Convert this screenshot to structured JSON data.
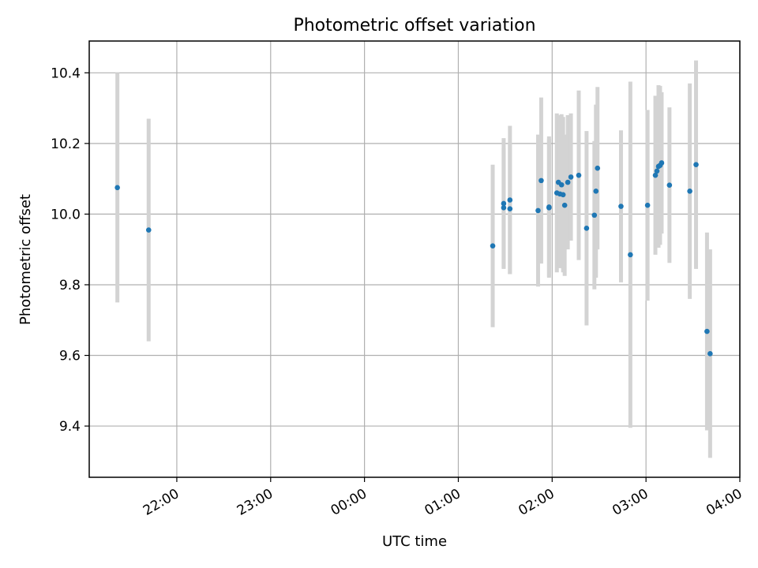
{
  "chart_data": {
    "type": "scatter",
    "title": "Photometric offset variation",
    "xlabel": "UTC time",
    "ylabel": "Photometric offset",
    "x_unit": "UTC time of night (21:00 to 04:00)",
    "xlim": [
      "21:04",
      "04:00"
    ],
    "ylim": [
      9.255,
      10.49
    ],
    "x_ticks": [
      "22:00",
      "23:00",
      "00:00",
      "01:00",
      "02:00",
      "03:00",
      "04:00"
    ],
    "y_ticks": [
      9.4,
      9.6,
      9.8,
      10.0,
      10.2,
      10.4
    ],
    "grid": true,
    "colors": {
      "point": "#1f77b4",
      "errorbar": "#d3d3d3",
      "grid": "#b0b0b0"
    },
    "series": [
      {
        "points": [
          {
            "x": "21:22",
            "y": 10.075,
            "err": 0.325
          },
          {
            "x": "21:42",
            "y": 9.955,
            "err": 0.315
          },
          {
            "x": "01:22",
            "y": 9.91,
            "err": 0.23
          },
          {
            "x": "01:29",
            "y": 10.03,
            "err": 0.185
          },
          {
            "x": "01:29",
            "y": 10.018,
            "err": 0.17
          },
          {
            "x": "01:33",
            "y": 10.04,
            "err": 0.21
          },
          {
            "x": "01:33",
            "y": 10.015,
            "err": 0.185
          },
          {
            "x": "01:51",
            "y": 10.01,
            "err": 0.215
          },
          {
            "x": "01:53",
            "y": 10.095,
            "err": 0.235
          },
          {
            "x": "01:58",
            "y": 10.02,
            "err": 0.2
          },
          {
            "x": "01:58",
            "y": 10.018,
            "err": 0.195
          },
          {
            "x": "02:03",
            "y": 10.06,
            "err": 0.225
          },
          {
            "x": "02:04",
            "y": 10.09,
            "err": 0.19
          },
          {
            "x": "02:05",
            "y": 10.057,
            "err": 0.21
          },
          {
            "x": "02:06",
            "y": 10.083,
            "err": 0.2
          },
          {
            "x": "02:07",
            "y": 10.055,
            "err": 0.22
          },
          {
            "x": "02:08",
            "y": 10.025,
            "err": 0.2
          },
          {
            "x": "02:10",
            "y": 10.09,
            "err": 0.19
          },
          {
            "x": "02:12",
            "y": 10.105,
            "err": 0.18
          },
          {
            "x": "02:17",
            "y": 10.11,
            "err": 0.24
          },
          {
            "x": "02:22",
            "y": 9.96,
            "err": 0.275
          },
          {
            "x": "02:27",
            "y": 9.997,
            "err": 0.21
          },
          {
            "x": "02:28",
            "y": 10.065,
            "err": 0.245
          },
          {
            "x": "02:29",
            "y": 10.13,
            "err": 0.23
          },
          {
            "x": "02:44",
            "y": 10.022,
            "err": 0.215
          },
          {
            "x": "02:50",
            "y": 9.885,
            "err": 0.49
          },
          {
            "x": "03:01",
            "y": 10.025,
            "err": 0.27
          },
          {
            "x": "03:06",
            "y": 10.11,
            "err": 0.225
          },
          {
            "x": "03:07",
            "y": 10.122,
            "err": 0.21
          },
          {
            "x": "03:08",
            "y": 10.135,
            "err": 0.23
          },
          {
            "x": "03:09",
            "y": 10.138,
            "err": 0.225
          },
          {
            "x": "03:10",
            "y": 10.145,
            "err": 0.2
          },
          {
            "x": "03:15",
            "y": 10.082,
            "err": 0.22
          },
          {
            "x": "03:28",
            "y": 10.065,
            "err": 0.305
          },
          {
            "x": "03:32",
            "y": 10.14,
            "err": 0.295
          },
          {
            "x": "03:39",
            "y": 9.668,
            "err": 0.28
          },
          {
            "x": "03:41",
            "y": 9.605,
            "err": 0.295
          }
        ]
      }
    ]
  }
}
